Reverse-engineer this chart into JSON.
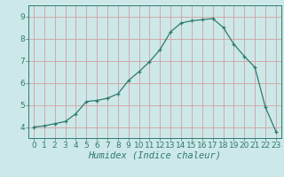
{
  "x": [
    0,
    1,
    2,
    3,
    4,
    5,
    6,
    7,
    8,
    9,
    10,
    11,
    12,
    13,
    14,
    15,
    16,
    17,
    18,
    19,
    20,
    21,
    22,
    23
  ],
  "y": [
    4.0,
    4.05,
    4.15,
    4.25,
    4.6,
    5.15,
    5.2,
    5.3,
    5.5,
    6.1,
    6.5,
    6.95,
    7.5,
    8.3,
    8.7,
    8.8,
    8.85,
    8.9,
    8.5,
    7.75,
    7.2,
    6.7,
    4.9,
    3.8
  ],
  "line_color": "#2d7a6e",
  "marker": "+",
  "bg_color": "#cde8e8",
  "grid_color_v": "#d4a0a0",
  "grid_color_h": "#d4a0a0",
  "xlabel": "Humidex (Indice chaleur)",
  "xlim": [
    -0.5,
    23.5
  ],
  "ylim": [
    3.5,
    9.5
  ],
  "yticks": [
    4,
    5,
    6,
    7,
    8,
    9
  ],
  "xticks": [
    0,
    1,
    2,
    3,
    4,
    5,
    6,
    7,
    8,
    9,
    10,
    11,
    12,
    13,
    14,
    15,
    16,
    17,
    18,
    19,
    20,
    21,
    22,
    23
  ],
  "axis_color": "#2d7a6e",
  "tick_color": "#2d7a6e",
  "font_size_xlabel": 7.5,
  "font_size_tick": 6.5
}
